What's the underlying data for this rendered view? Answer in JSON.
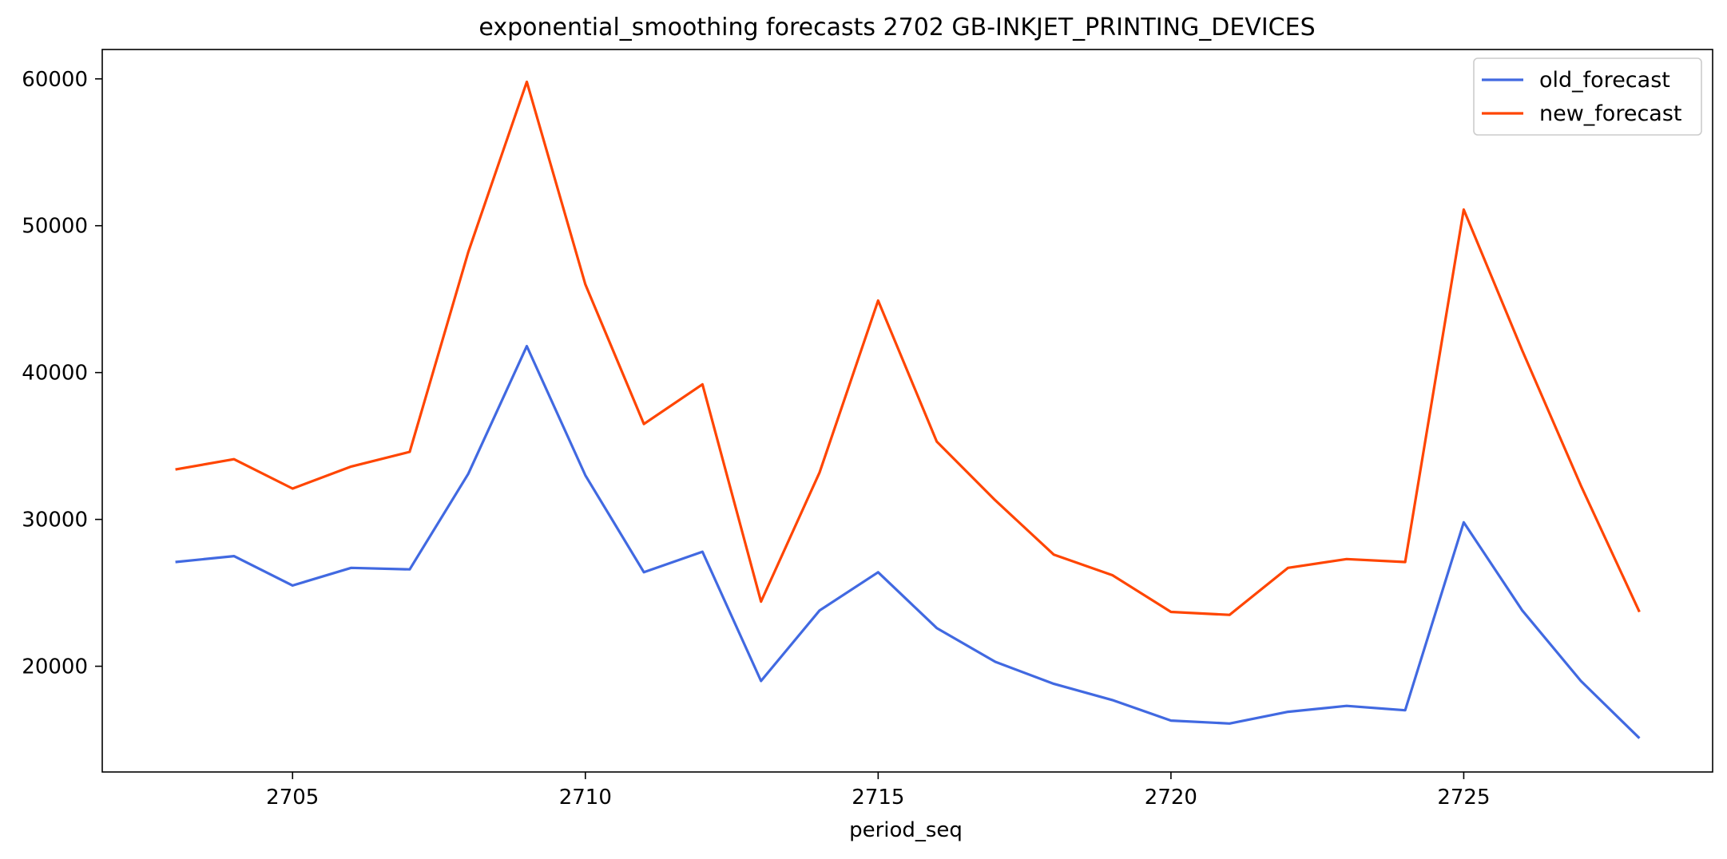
{
  "chart_data": {
    "type": "line",
    "title": "exponential_smoothing forecasts 2702 GB-INKJET_PRINTING_DEVICES",
    "xlabel": "period_seq",
    "ylabel": "",
    "x": [
      2703,
      2704,
      2705,
      2706,
      2707,
      2708,
      2709,
      2710,
      2711,
      2712,
      2713,
      2714,
      2715,
      2716,
      2717,
      2718,
      2719,
      2720,
      2721,
      2722,
      2723,
      2724,
      2725,
      2726,
      2727,
      2728
    ],
    "series": [
      {
        "name": "old_forecast",
        "color": "#4169e1",
        "values": [
          27100,
          27500,
          25500,
          26700,
          26600,
          33100,
          41800,
          33000,
          26400,
          27800,
          19000,
          23800,
          26400,
          22600,
          20300,
          18800,
          17700,
          16300,
          16100,
          16900,
          17300,
          17000,
          29800,
          23800,
          19000,
          15100
        ]
      },
      {
        "name": "new_forecast",
        "color": "#ff4500",
        "values": [
          33400,
          34100,
          32100,
          33600,
          34600,
          48200,
          59800,
          46000,
          36500,
          39200,
          24400,
          33200,
          44900,
          35300,
          31300,
          27600,
          26200,
          23700,
          23500,
          26700,
          27300,
          27100,
          51100,
          41500,
          32300,
          23700
        ]
      }
    ],
    "xlim": [
      2701.75,
      2729.25
    ],
    "ylim": [
      12800,
      62000
    ],
    "xticks": [
      2705,
      2710,
      2715,
      2720,
      2725
    ],
    "yticks": [
      20000,
      30000,
      40000,
      50000,
      60000
    ],
    "grid": false,
    "legend_position": "top-right"
  }
}
